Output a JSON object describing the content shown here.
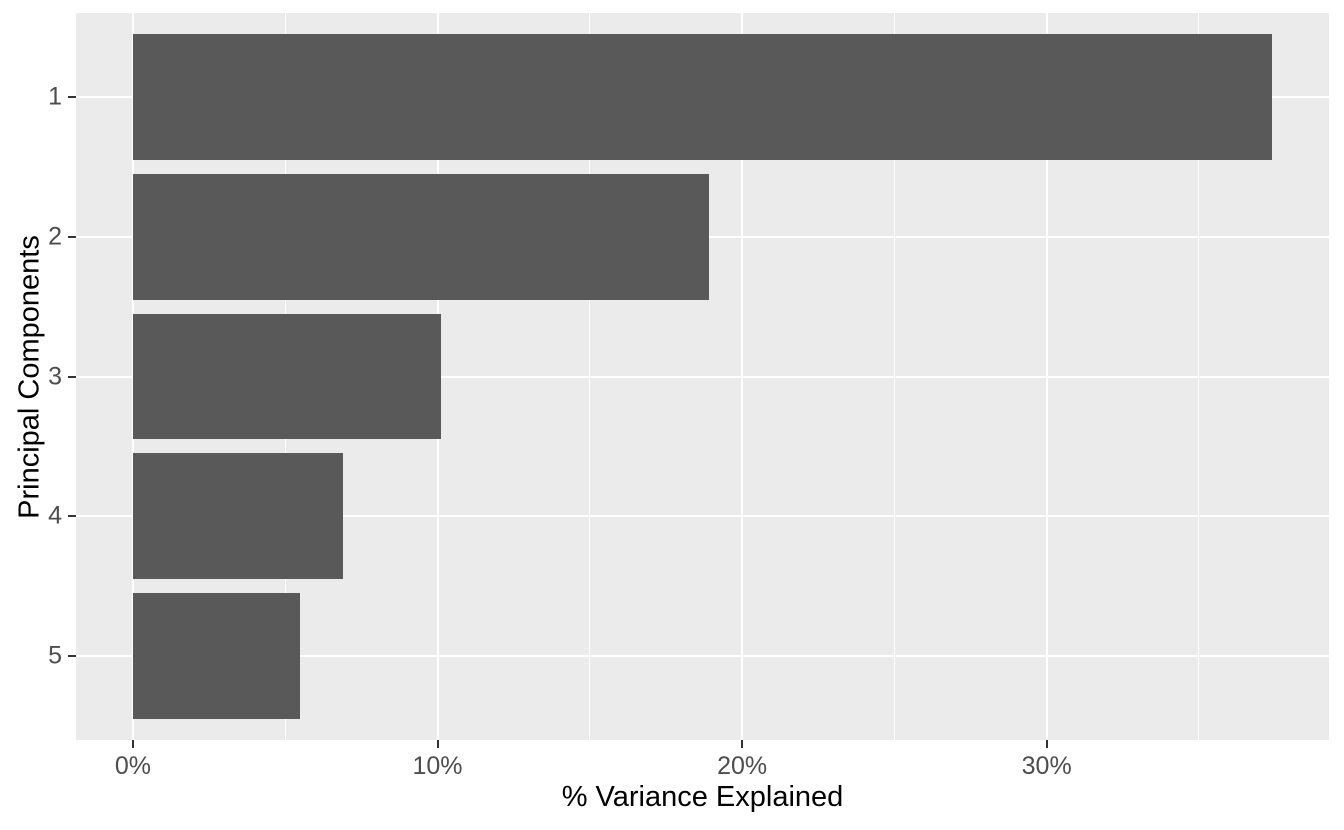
{
  "chart_data": {
    "type": "bar",
    "orientation": "horizontal",
    "title": "",
    "xlabel": "% Variance Explained",
    "ylabel": "Principal Components",
    "categories": [
      "1",
      "2",
      "3",
      "4",
      "5"
    ],
    "values": [
      37.4,
      18.9,
      10.1,
      6.9,
      5.5
    ],
    "x_ticks": [
      {
        "value": 0,
        "label": "0%"
      },
      {
        "value": 10,
        "label": "10%"
      },
      {
        "value": 20,
        "label": "20%"
      },
      {
        "value": 30,
        "label": "30%"
      }
    ],
    "x_minor_ticks": [
      5,
      15,
      25,
      35
    ],
    "xlim": [
      0,
      37.4
    ],
    "x_expansion": 0.05,
    "grid": true,
    "legend_position": "none",
    "colors": {
      "bar_fill": "#595959",
      "panel_background": "#ebebeb",
      "gridline": "#ffffff",
      "tick_label": "#4d4d4d",
      "axis_title": "#000000",
      "tick_mark": "#333333",
      "page_background": "#ffffff"
    }
  }
}
